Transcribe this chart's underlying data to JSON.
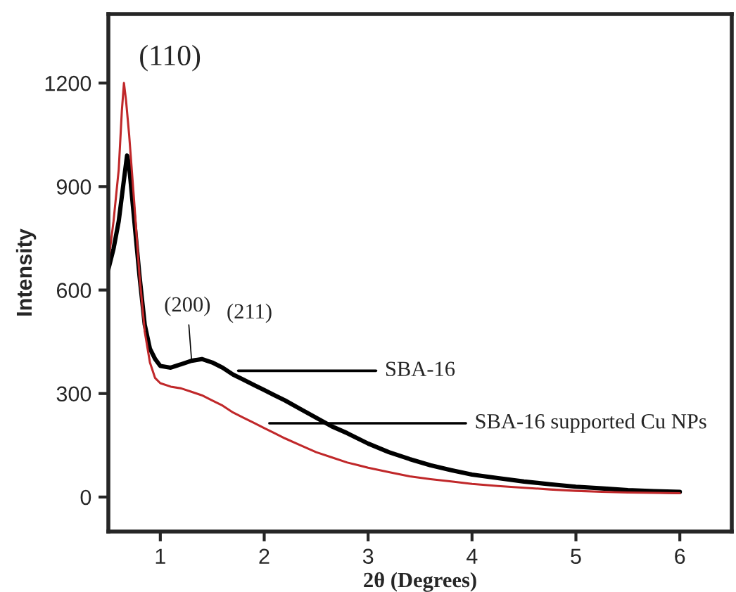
{
  "chart_data": {
    "type": "line",
    "xlabel": "2θ (Degrees)",
    "ylabel": "Intensity",
    "xlim": [
      0.5,
      6.5
    ],
    "ylim": [
      -100,
      1400
    ],
    "xticks": [
      1,
      2,
      3,
      4,
      5,
      6
    ],
    "yticks": [
      0,
      300,
      600,
      900,
      1200
    ],
    "grid": false,
    "legend": false,
    "marker": "none",
    "line_style": "solid",
    "series": [
      {
        "color": "#000000",
        "x": [
          0.5,
          0.55,
          0.6,
          0.65,
          0.68,
          0.7,
          0.75,
          0.8,
          0.85,
          0.9,
          0.95,
          1.0,
          1.1,
          1.2,
          1.3,
          1.4,
          1.5,
          1.6,
          1.7,
          1.8,
          1.9,
          2.0,
          2.1,
          2.2,
          2.35,
          2.5,
          2.65,
          2.8,
          3.0,
          3.2,
          3.4,
          3.6,
          3.8,
          4.0,
          4.25,
          4.5,
          4.75,
          5.0,
          5.25,
          5.5,
          5.75,
          6.0
        ],
        "values": [
          660,
          720,
          800,
          920,
          990,
          960,
          800,
          640,
          500,
          430,
          400,
          380,
          375,
          385,
          395,
          400,
          390,
          375,
          355,
          340,
          325,
          310,
          295,
          280,
          255,
          230,
          205,
          185,
          155,
          130,
          110,
          92,
          78,
          65,
          55,
          45,
          37,
          30,
          25,
          20,
          17,
          15
        ]
      },
      {
        "color": "#c0282a",
        "x": [
          0.5,
          0.55,
          0.6,
          0.63,
          0.65,
          0.67,
          0.7,
          0.75,
          0.8,
          0.85,
          0.9,
          0.95,
          1.0,
          1.1,
          1.2,
          1.3,
          1.4,
          1.5,
          1.6,
          1.7,
          1.8,
          1.9,
          2.0,
          2.1,
          2.2,
          2.35,
          2.5,
          2.65,
          2.8,
          3.0,
          3.2,
          3.4,
          3.6,
          3.8,
          4.0,
          4.25,
          4.5,
          4.75,
          5.0,
          5.25,
          5.5,
          5.75,
          6.0
        ],
        "values": [
          680,
          800,
          950,
          1120,
          1200,
          1150,
          1050,
          850,
          640,
          480,
          390,
          345,
          330,
          320,
          315,
          305,
          295,
          280,
          265,
          245,
          230,
          215,
          200,
          185,
          170,
          150,
          130,
          115,
          100,
          85,
          72,
          60,
          52,
          45,
          38,
          32,
          27,
          22,
          18,
          15,
          13,
          12,
          11
        ]
      }
    ],
    "annotations": [
      {
        "text": "(110)",
        "x": 0.68,
        "y": 1200
      },
      {
        "text": "(200)",
        "x": 1.3,
        "y": 400
      },
      {
        "text": "(211)",
        "x": 1.6,
        "y": 380
      },
      {
        "text": "SBA-16",
        "x": 1.75,
        "y": 366
      },
      {
        "text": "SBA-16 supported Cu NPs",
        "x": 2.05,
        "y": 214
      }
    ]
  }
}
